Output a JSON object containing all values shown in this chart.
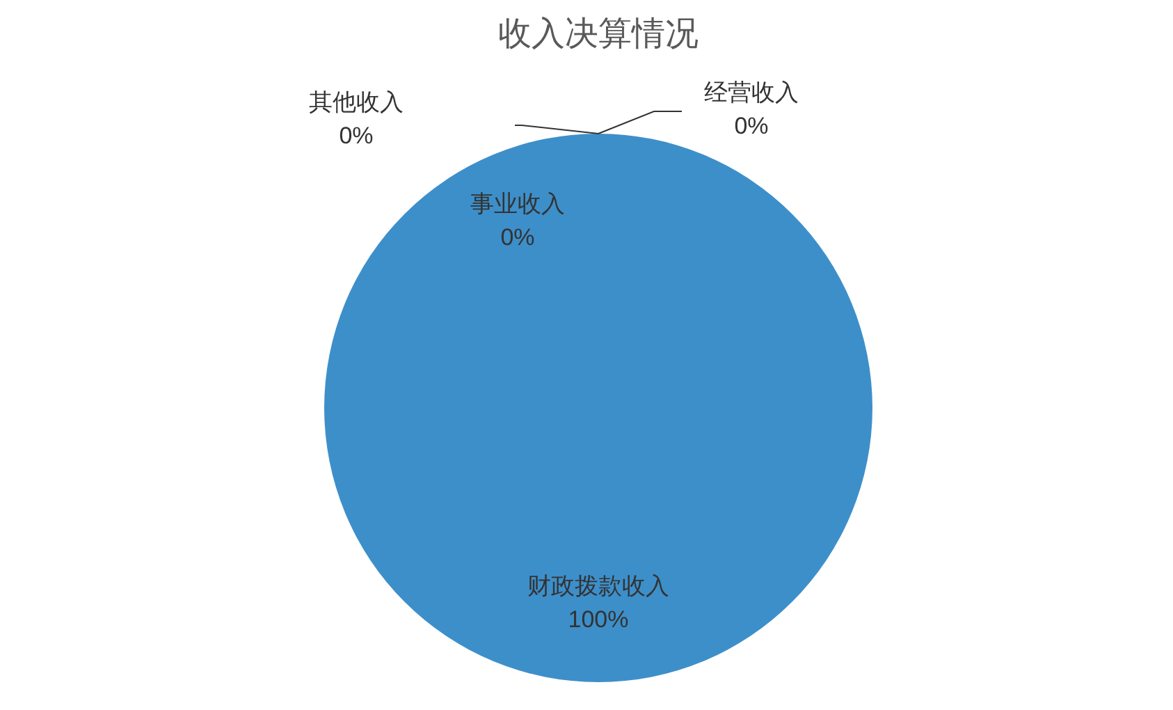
{
  "chart_data": {
    "type": "pie",
    "title": "收入决算情况",
    "categories": [
      "财政拨款收入",
      "事业收入",
      "经营收入",
      "其他收入"
    ],
    "values": [
      100,
      0,
      0,
      0
    ],
    "value_labels": [
      "100%",
      "0%",
      "0%",
      "0%"
    ],
    "colors": [
      "#3d8fca",
      "#3d8fca",
      "#3d8fca",
      "#3d8fca"
    ]
  }
}
